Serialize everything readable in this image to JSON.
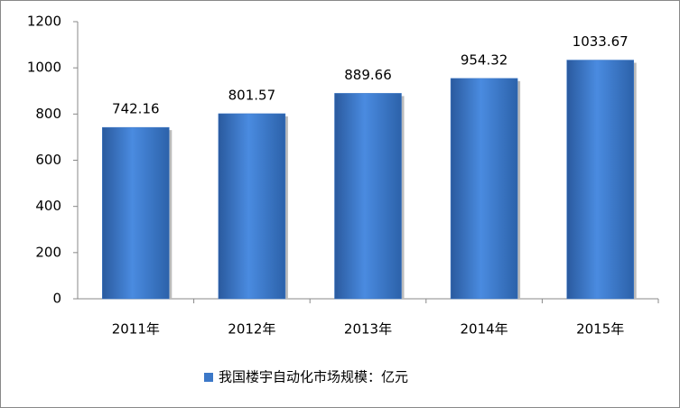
{
  "chart_data": {
    "type": "bar",
    "categories": [
      "2011年",
      "2012年",
      "2013年",
      "2014年",
      "2015年"
    ],
    "series": [
      {
        "name": "我国楼宇自动化市场规模：亿元",
        "color": "#3c78c8",
        "values": [
          742.16,
          801.57,
          889.66,
          954.32,
          1033.67
        ]
      }
    ],
    "ylim": [
      0,
      1200
    ],
    "yticks": [
      0,
      200,
      400,
      600,
      800,
      1000,
      1200
    ],
    "grid": false,
    "legend": "bottom"
  }
}
